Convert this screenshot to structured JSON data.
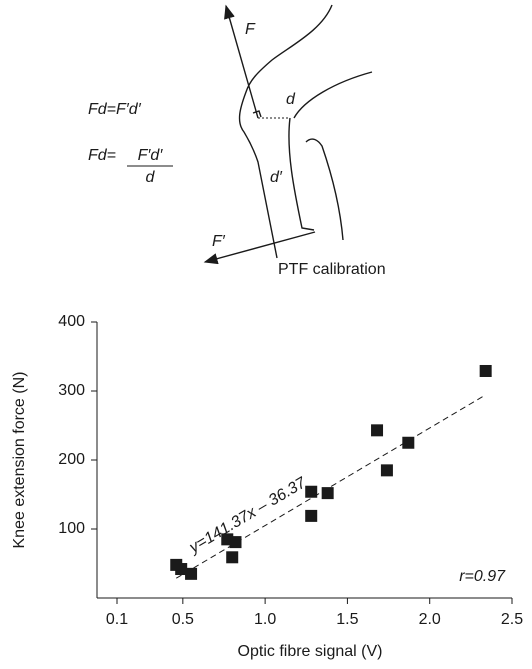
{
  "diagram": {
    "force_label": "F",
    "lever_label": "d",
    "sensor_lever_label": "d′",
    "sensor_force_label": "F′",
    "caption": "PTF calibration",
    "equation_1": "Fd=F′d′",
    "equation_2": {
      "lhs": "Fd=",
      "numerator": "F′d′",
      "denominator": "d"
    }
  },
  "chart_data": {
    "type": "scatter",
    "x_label": "Optic fibre signal (V)",
    "y_label": "Knee extension force (N)",
    "x": [
      0.46,
      0.49,
      0.55,
      0.77,
      0.8,
      0.82,
      1.28,
      1.28,
      1.38,
      1.68,
      1.74,
      1.87,
      2.34
    ],
    "values": [
      48,
      42,
      35,
      85,
      59,
      81,
      119,
      154,
      152,
      243,
      185,
      225,
      329
    ],
    "color": "#1a1a1a",
    "xlim": [
      0.1,
      2.5
    ],
    "xticks": [
      0.1,
      0.5,
      {
        "value": 1,
        "label": "1.0"
      },
      1.5,
      {
        "value": 2,
        "label": "2.0"
      },
      2.5
    ],
    "ylim": [
      0,
      400
    ],
    "yticks": [
      100,
      200,
      300,
      400
    ],
    "fit": {
      "label": "y=141.37x – 36.37",
      "slope": 141.37,
      "intercept": -36.37
    },
    "annotation": "r=0.97"
  }
}
